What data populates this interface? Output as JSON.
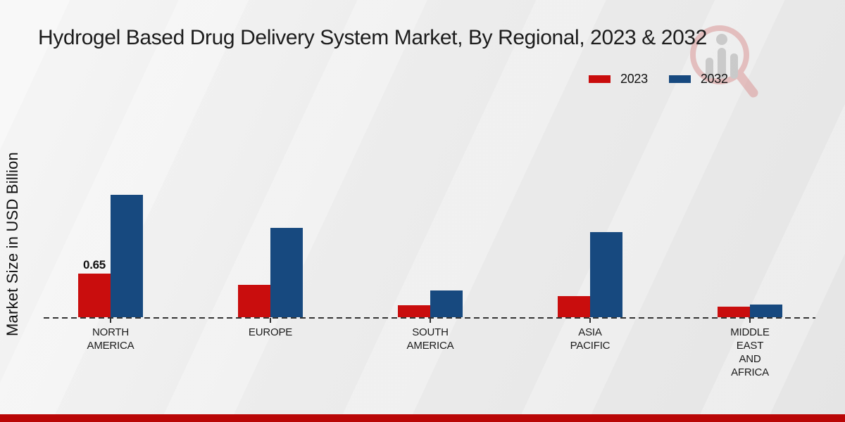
{
  "title": "Hydrogel Based Drug Delivery System Market, By Regional, 2023 & 2032",
  "ylabel": "Market Size in USD Billion",
  "legend": {
    "position": "top-right",
    "items": [
      {
        "label": "2023",
        "color": "#c90d0d"
      },
      {
        "label": "2032",
        "color": "#17497f"
      }
    ]
  },
  "colors": {
    "series_2023": "#c90d0d",
    "series_2032": "#17497f",
    "footer_stripe": "#b90606",
    "axis_line": "#343434",
    "text": "#1c1c1c"
  },
  "watermark": "market-research-magnifier-logo",
  "chart_data": {
    "type": "bar",
    "title": "Hydrogel Based Drug Delivery System Market, By Regional, 2023 & 2032",
    "xlabel": "",
    "ylabel": "Market Size in USD Billion",
    "categories": [
      "North America",
      "Europe",
      "South America",
      "Asia Pacific",
      "Middle East and Africa"
    ],
    "category_display": [
      [
        "NORTH",
        "AMERICA"
      ],
      [
        "EUROPE"
      ],
      [
        "SOUTH",
        "AMERICA"
      ],
      [
        "ASIA",
        "PACIFIC"
      ],
      [
        "MIDDLE",
        "EAST",
        "AND",
        "AFRICA"
      ]
    ],
    "series": [
      {
        "name": "2023",
        "color": "#c90d0d",
        "values": [
          0.65,
          0.48,
          0.18,
          0.31,
          0.16
        ]
      },
      {
        "name": "2032",
        "color": "#17497f",
        "values": [
          1.81,
          1.32,
          0.4,
          1.26,
          0.19
        ]
      }
    ],
    "data_labels": [
      {
        "series_index": 0,
        "category_index": 0,
        "text": "0.65"
      }
    ],
    "ylim": [
      0,
      2.0
    ],
    "grid": false,
    "y_axis_ticks_visible": false,
    "baseline_style": "dashed",
    "legend_position": "top-right"
  }
}
